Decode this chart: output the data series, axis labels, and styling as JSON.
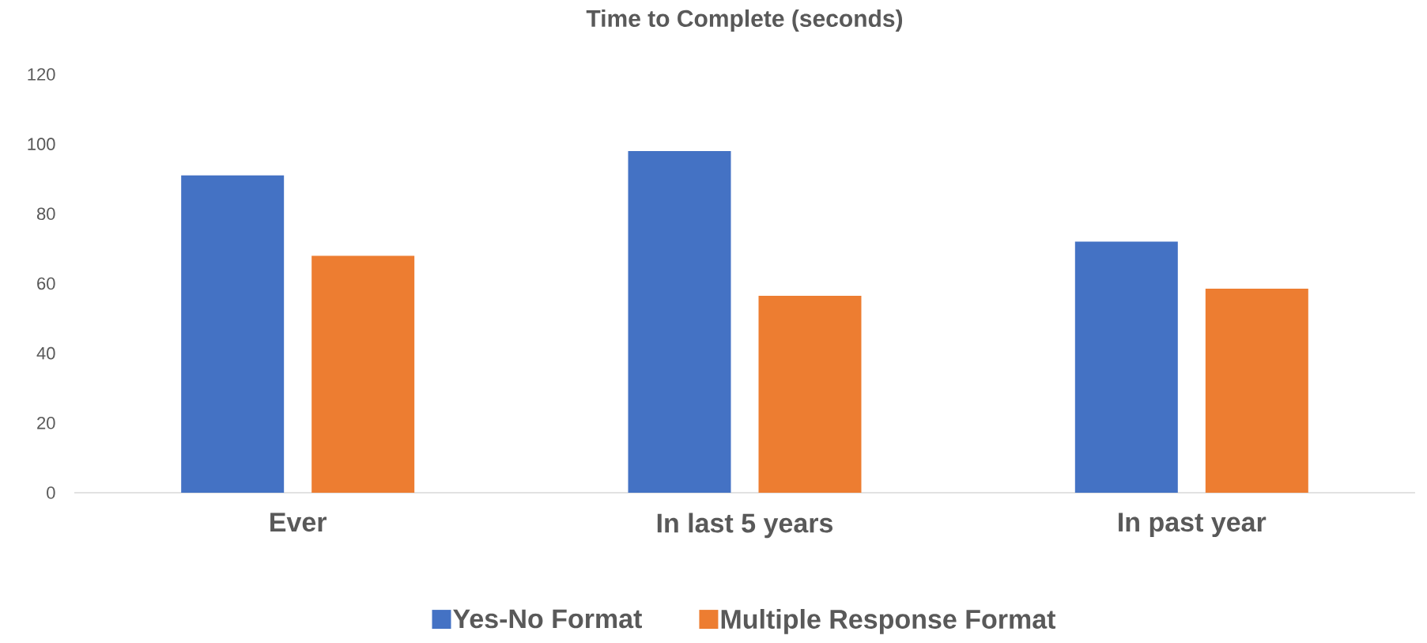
{
  "chart_data": {
    "type": "bar",
    "title": "Time to Complete (seconds)",
    "categories": [
      "Ever",
      "In last 5 years",
      "In past year"
    ],
    "series": [
      {
        "name": "Yes-No Format",
        "color": "#4472c4",
        "values": [
          91,
          98,
          72
        ]
      },
      {
        "name": "Multiple Response Format",
        "color": "#ed7d31",
        "values": [
          68,
          56.5,
          58.5
        ]
      }
    ],
    "ylim": [
      0,
      120
    ],
    "yticks": [
      0,
      20,
      40,
      60,
      80,
      100,
      120
    ],
    "legend": "bottom"
  }
}
